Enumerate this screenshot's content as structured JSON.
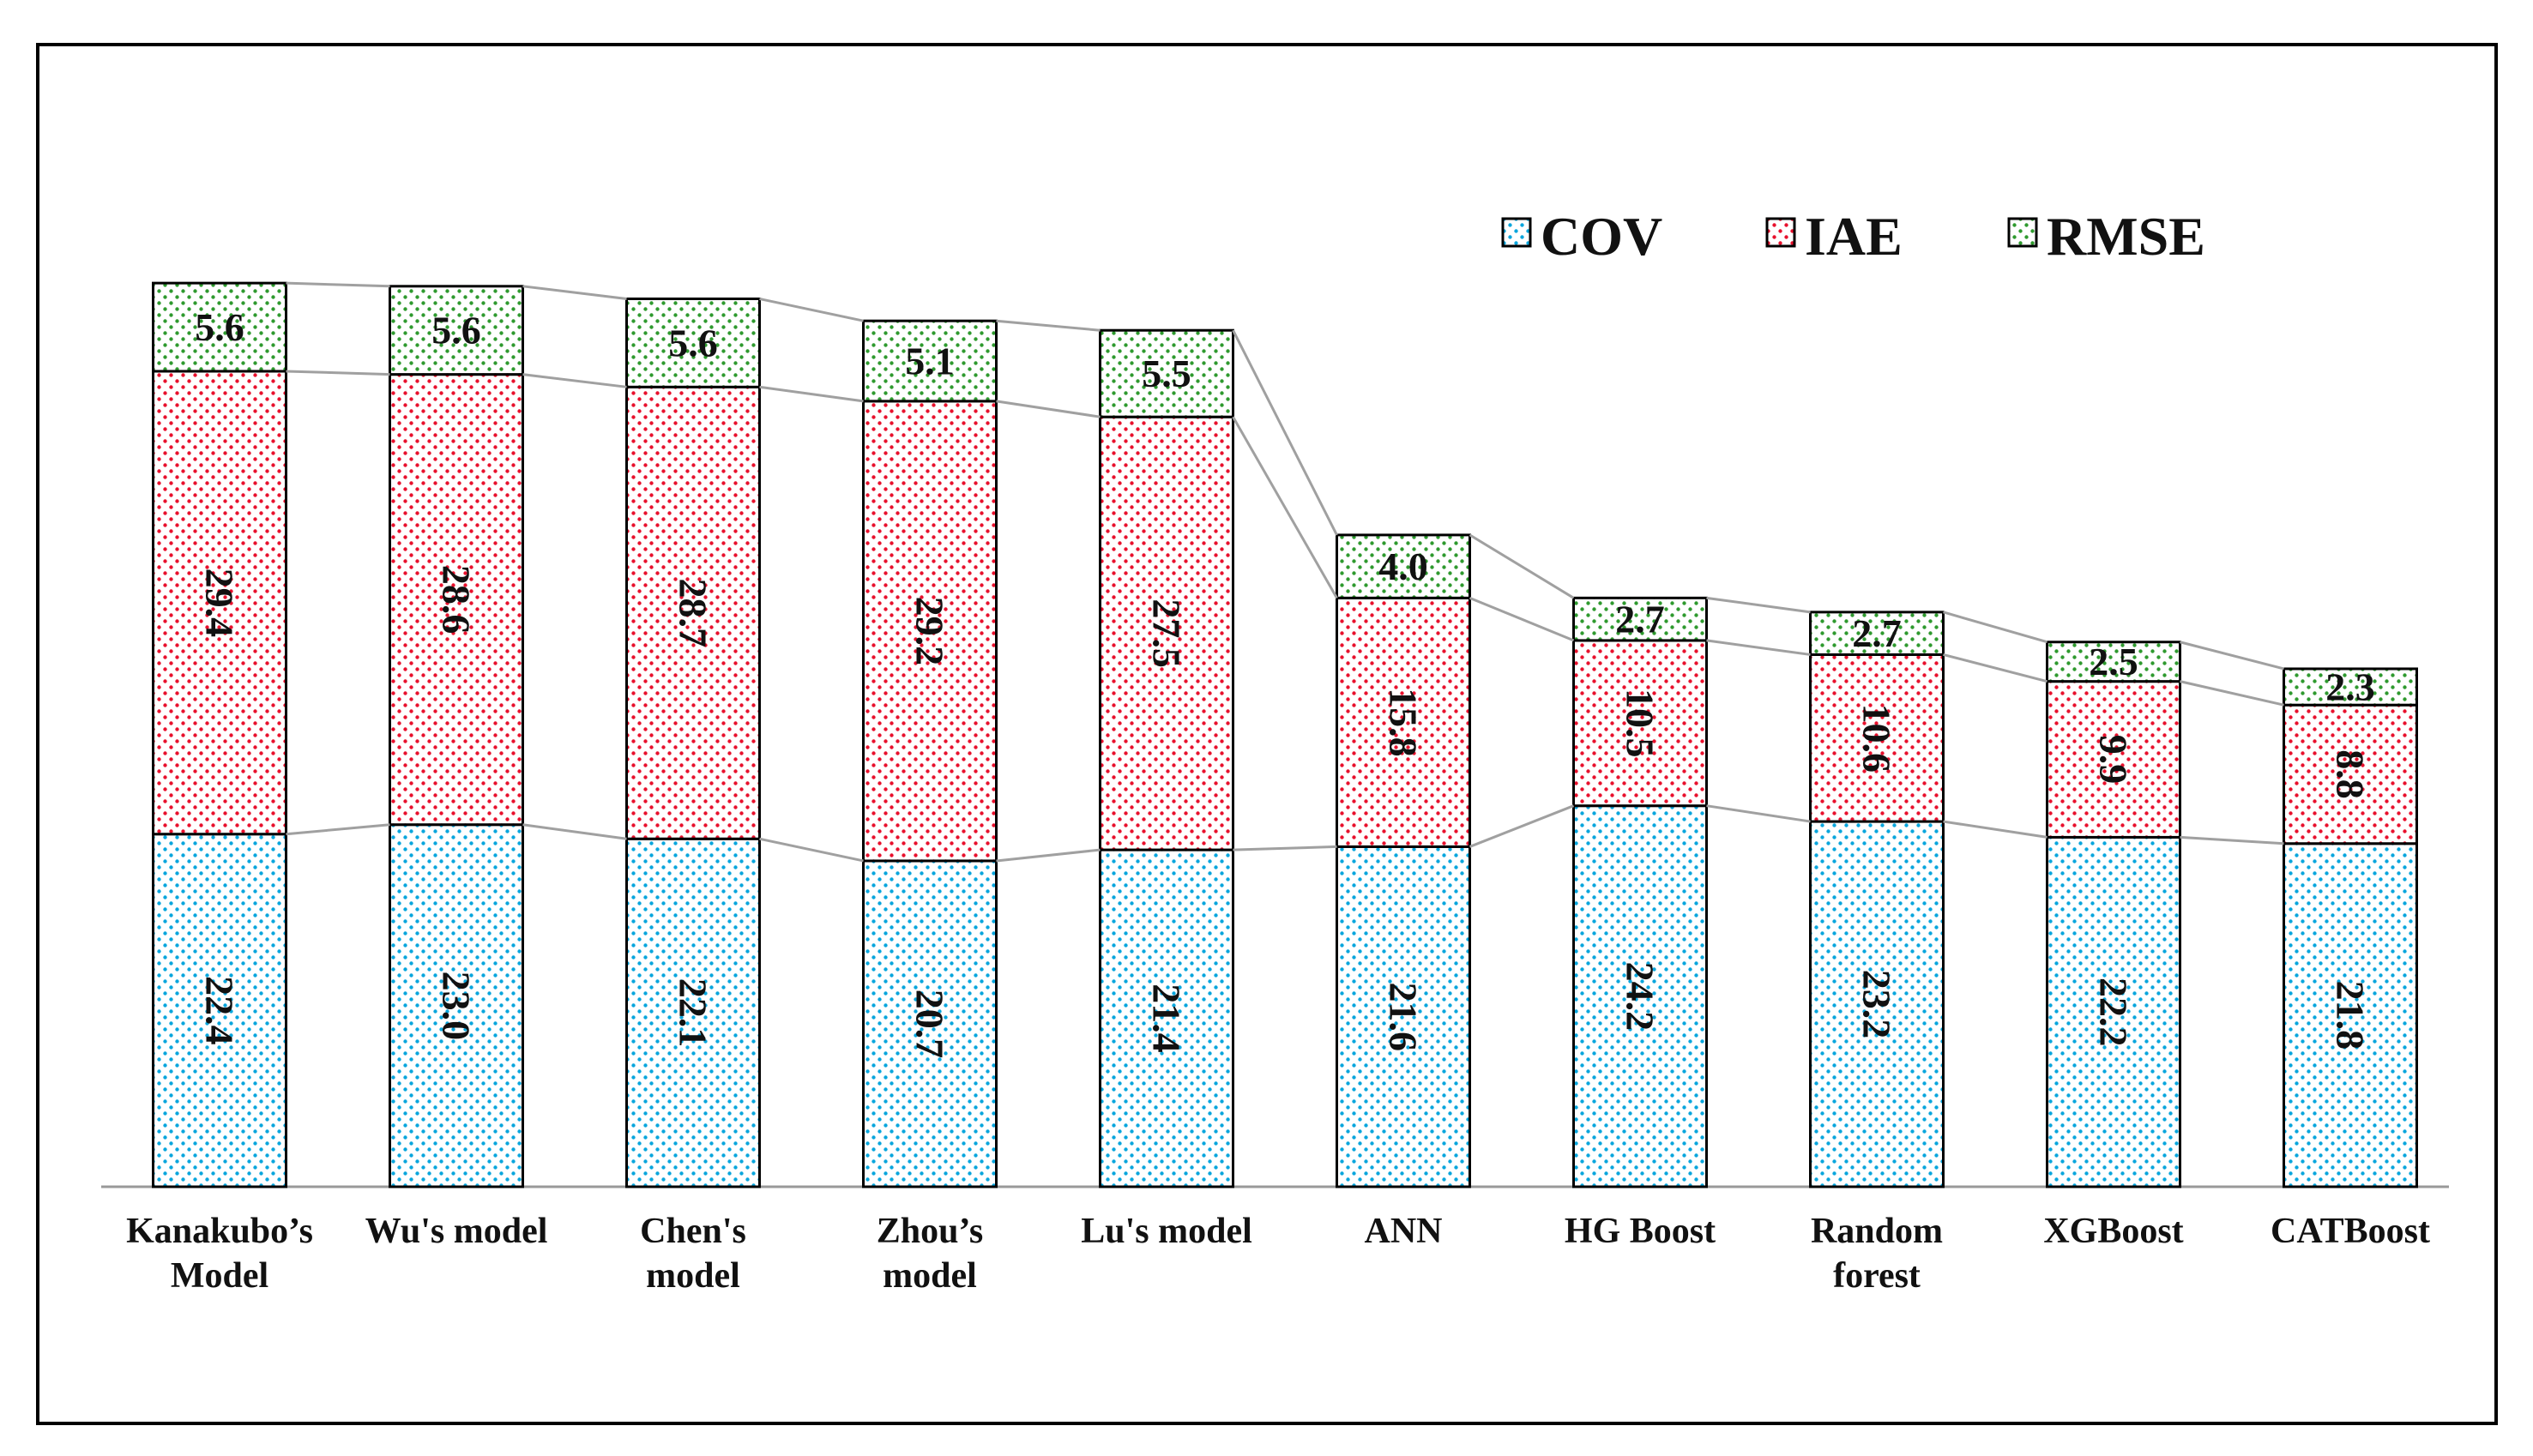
{
  "chart_data": {
    "type": "bar",
    "stacked": true,
    "categories": [
      "Kanakubo's Model",
      "Wu's model",
      "Chen's model",
      "Zhou's model",
      "Lu's model",
      "ANN",
      "HG Boost",
      "Random forest",
      "XGBoost",
      "CATBoost"
    ],
    "category_labels": [
      "Kanakubo’s\nModel",
      "Wu's model",
      "Chen's\nmodel",
      "Zhou’s\nmodel",
      "Lu's model",
      "ANN",
      "HG Boost",
      "Random\nforest",
      "XGBoost",
      "CATBoost"
    ],
    "series": [
      {
        "name": "COV",
        "values": [
          22.4,
          23.0,
          22.1,
          20.7,
          21.4,
          21.6,
          24.2,
          23.2,
          22.2,
          21.8
        ],
        "color": "#00b0f0",
        "text": [
          "22.4",
          "23.0",
          "22.1",
          "20.7",
          "21.4",
          "21.6",
          "24.2",
          "23.2",
          "22.2",
          "21.8"
        ]
      },
      {
        "name": "IAE",
        "values": [
          29.4,
          28.6,
          28.7,
          29.2,
          27.5,
          15.8,
          10.5,
          10.6,
          9.9,
          8.8
        ],
        "color": "#ff0000",
        "text": [
          "29.4",
          "28.6",
          "28.7",
          "29.2",
          "27.5",
          "15.8",
          "10.5",
          "10.6",
          "9.9",
          "8.8"
        ]
      },
      {
        "name": "RMSE",
        "values": [
          5.6,
          5.6,
          5.6,
          5.1,
          5.5,
          4.0,
          2.7,
          2.7,
          2.5,
          2.3
        ],
        "color": "#3a9e3a",
        "text": [
          "5.6",
          "5.6",
          "5.6",
          "5.1",
          "5.5",
          "4.0",
          "2.7",
          "2.7",
          "2.5",
          "2.3"
        ]
      }
    ],
    "ylim": [
      0,
      60
    ],
    "legend_position": "top-right",
    "connector_lines": true,
    "pattern": "dotted"
  }
}
